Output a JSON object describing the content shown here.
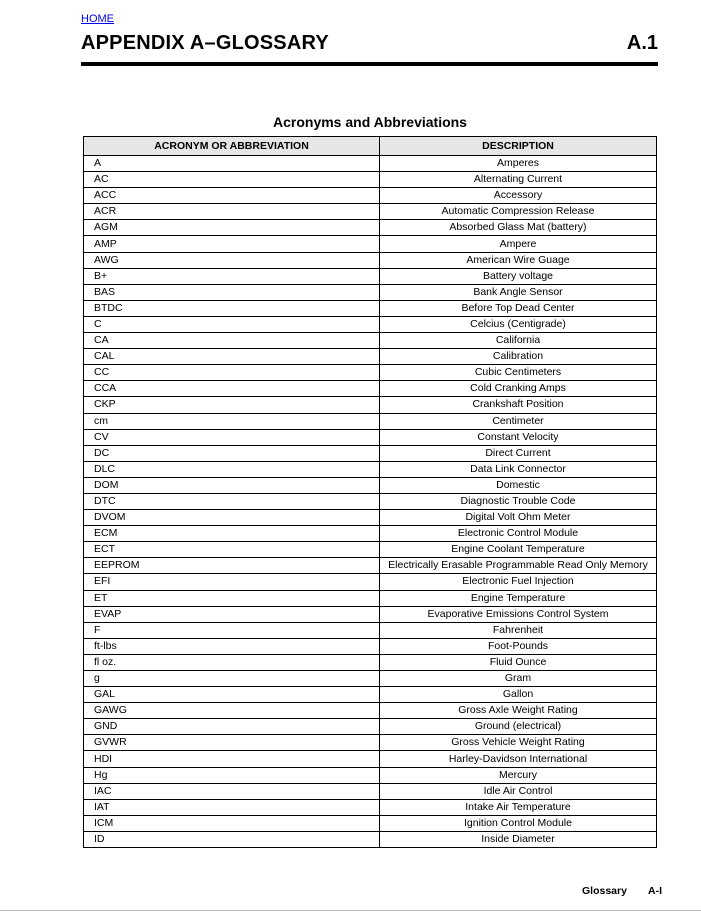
{
  "header": {
    "home_link": "HOME",
    "title": "APPENDIX A–GLOSSARY",
    "section_number": "A.1"
  },
  "table": {
    "caption": "Acronyms and Abbreviations",
    "columns": [
      "ACRONYM OR ABBREVIATION",
      "DESCRIPTION"
    ],
    "rows": [
      [
        "A",
        "Amperes"
      ],
      [
        "AC",
        "Alternating Current"
      ],
      [
        "ACC",
        "Accessory"
      ],
      [
        "ACR",
        "Automatic Compression Release"
      ],
      [
        "AGM",
        "Absorbed Glass Mat (battery)"
      ],
      [
        "AMP",
        "Ampere"
      ],
      [
        "AWG",
        "American Wire Guage"
      ],
      [
        "B+",
        "Battery voltage"
      ],
      [
        "BAS",
        "Bank Angle Sensor"
      ],
      [
        "BTDC",
        "Before Top Dead Center"
      ],
      [
        "C",
        "Celcius (Centigrade)"
      ],
      [
        "CA",
        "California"
      ],
      [
        "CAL",
        "Calibration"
      ],
      [
        "CC",
        "Cubic Centimeters"
      ],
      [
        "CCA",
        "Cold Cranking Amps"
      ],
      [
        "CKP",
        "Crankshaft Position"
      ],
      [
        "cm",
        "Centimeter"
      ],
      [
        "CV",
        "Constant Velocity"
      ],
      [
        "DC",
        "Direct Current"
      ],
      [
        "DLC",
        "Data Link Connector"
      ],
      [
        "DOM",
        "Domestic"
      ],
      [
        "DTC",
        "Diagnostic Trouble Code"
      ],
      [
        "DVOM",
        "Digital Volt Ohm Meter"
      ],
      [
        "ECM",
        "Electronic Control Module"
      ],
      [
        "ECT",
        "Engine Coolant Temperature"
      ],
      [
        "EEPROM",
        "Electrically Erasable Programmable Read Only Memory"
      ],
      [
        "EFI",
        "Electronic Fuel Injection"
      ],
      [
        "ET",
        "Engine Temperature"
      ],
      [
        "EVAP",
        "Evaporative Emissions Control System"
      ],
      [
        "F",
        "Fahrenheit"
      ],
      [
        "ft-lbs",
        "Foot-Pounds"
      ],
      [
        "fl oz.",
        "Fluid Ounce"
      ],
      [
        "g",
        "Gram"
      ],
      [
        "GAL",
        "Gallon"
      ],
      [
        "GAWG",
        "Gross Axle Weight Rating"
      ],
      [
        "GND",
        "Ground (electrical)"
      ],
      [
        "GVWR",
        "Gross Vehicle Weight Rating"
      ],
      [
        "HDI",
        "Harley-Davidson International"
      ],
      [
        "Hg",
        "Mercury"
      ],
      [
        "IAC",
        "Idle Air Control"
      ],
      [
        "IAT",
        "Intake Air Temperature"
      ],
      [
        "ICM",
        "Ignition Control Module"
      ],
      [
        "ID",
        "Inside Diameter"
      ]
    ]
  },
  "footer": {
    "section": "Glossary",
    "page": "A-I"
  }
}
